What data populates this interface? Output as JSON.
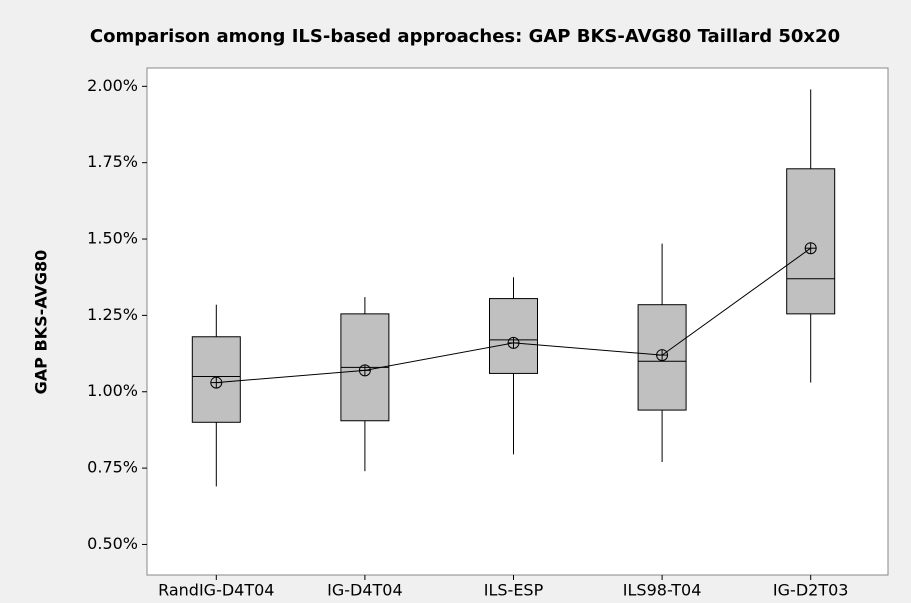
{
  "chart_data": {
    "type": "box",
    "title": "Comparison among ILS-based approaches: GAP BKS-AVG80 Taillard 50x20",
    "y_label": "GAP BKS-AVG80",
    "categories": [
      "RandIG-D4T04",
      "IG-D4T04",
      "ILS-ESP",
      "ILS98-T04",
      "IG-D2T03"
    ],
    "boxes": [
      {
        "min": 0.69,
        "q1": 0.9,
        "median": 1.05,
        "q3": 1.18,
        "max": 1.285,
        "mean": 1.03
      },
      {
        "min": 0.74,
        "q1": 0.905,
        "median": 1.08,
        "q3": 1.255,
        "max": 1.31,
        "mean": 1.07
      },
      {
        "min": 0.795,
        "q1": 1.06,
        "median": 1.17,
        "q3": 1.305,
        "max": 1.375,
        "mean": 1.16
      },
      {
        "min": 0.77,
        "q1": 0.94,
        "median": 1.1,
        "q3": 1.285,
        "max": 1.485,
        "mean": 1.12
      },
      {
        "min": 1.03,
        "q1": 1.255,
        "median": 1.37,
        "q3": 1.73,
        "max": 1.99,
        "mean": 1.47
      }
    ],
    "color": "#c0c0c0",
    "ylim": [
      0.4,
      2.06
    ],
    "yticks": [
      {
        "value": 0.5,
        "label": "0.50%"
      },
      {
        "value": 0.75,
        "label": "0.75%"
      },
      {
        "value": 1.0,
        "label": "1.00%"
      },
      {
        "value": 1.25,
        "label": "1.25%"
      },
      {
        "value": 1.5,
        "label": "1.50%"
      },
      {
        "value": 1.75,
        "label": "1.75%"
      },
      {
        "value": 2.0,
        "label": "2.00%"
      }
    ]
  }
}
